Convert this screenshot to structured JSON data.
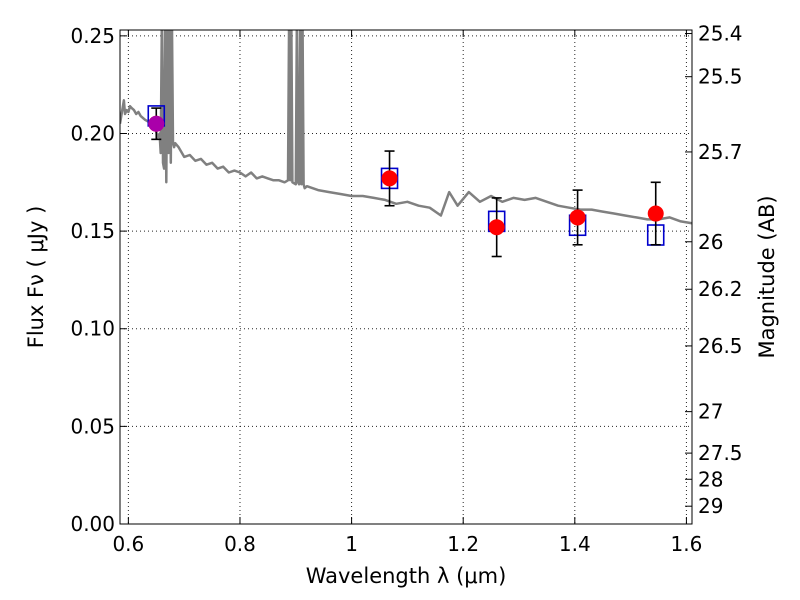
{
  "chart_data": {
    "type": "scatter",
    "title": "",
    "xlabel": "Wavelength  λ (μm)",
    "ylabel": "Flux  Fν ( μJy )",
    "ylabel_right": "Magnitude (AB)",
    "xlim": [
      0.585,
      1.61
    ],
    "ylim": [
      0.0,
      0.253
    ],
    "xticks": [
      {
        "value": 0.6,
        "label": "0.6"
      },
      {
        "value": 0.8,
        "label": "0.8"
      },
      {
        "value": 1.0,
        "label": "1"
      },
      {
        "value": 1.2,
        "label": "1.2"
      },
      {
        "value": 1.4,
        "label": "1.4"
      },
      {
        "value": 1.6,
        "label": "1.6"
      }
    ],
    "yticks": [
      {
        "value": 0.0,
        "label": "0.00"
      },
      {
        "value": 0.05,
        "label": "0.05"
      },
      {
        "value": 0.1,
        "label": "0.10"
      },
      {
        "value": 0.15,
        "label": "0.15"
      },
      {
        "value": 0.2,
        "label": "0.20"
      },
      {
        "value": 0.25,
        "label": "0.25"
      }
    ],
    "mag_ticks": [
      {
        "value": 25.4,
        "label": "25.4"
      },
      {
        "value": 25.5,
        "label": "25.5"
      },
      {
        "value": 25.7,
        "label": "25.7"
      },
      {
        "value": 26.0,
        "label": "26"
      },
      {
        "value": 26.2,
        "label": "26.2"
      },
      {
        "value": 26.5,
        "label": "26.5"
      },
      {
        "value": 27.0,
        "label": "27"
      },
      {
        "value": 27.5,
        "label": "27.5"
      },
      {
        "value": 28.0,
        "label": "28"
      },
      {
        "value": 29.0,
        "label": "29"
      }
    ],
    "grid": true,
    "series": [
      {
        "kind": "line",
        "color": "#808080",
        "x": [
          0.585,
          0.592,
          0.594,
          0.597,
          0.6,
          0.603,
          0.606,
          0.61,
          0.614,
          0.618,
          0.622,
          0.626,
          0.63,
          0.636,
          0.642,
          0.648,
          0.652,
          0.656,
          0.658,
          0.66,
          0.662,
          0.664,
          0.666,
          0.668,
          0.67,
          0.672,
          0.674,
          0.676,
          0.678,
          0.68,
          0.682,
          0.684,
          0.69,
          0.7,
          0.71,
          0.72,
          0.73,
          0.74,
          0.75,
          0.76,
          0.77,
          0.78,
          0.79,
          0.8,
          0.81,
          0.82,
          0.83,
          0.84,
          0.85,
          0.86,
          0.87,
          0.88,
          0.886,
          0.888,
          0.89,
          0.892,
          0.894,
          0.9,
          0.902,
          0.904,
          0.906,
          0.908,
          0.91,
          0.912,
          0.914,
          0.916,
          0.92,
          0.94,
          0.96,
          0.98,
          1.0,
          1.02,
          1.04,
          1.06,
          1.08,
          1.1,
          1.12,
          1.14,
          1.16,
          1.175,
          1.19,
          1.21,
          1.23,
          1.25,
          1.27,
          1.29,
          1.31,
          1.33,
          1.35,
          1.37,
          1.39,
          1.41,
          1.43,
          1.45,
          1.47,
          1.49,
          1.51,
          1.53,
          1.55,
          1.57,
          1.59,
          1.61
        ],
        "values": [
          0.205,
          0.217,
          0.21,
          0.212,
          0.211,
          0.214,
          0.213,
          0.212,
          0.21,
          0.211,
          0.209,
          0.208,
          0.207,
          0.206,
          0.205,
          0.204,
          0.198,
          0.2,
          0.19,
          0.26,
          0.185,
          0.182,
          0.26,
          0.175,
          0.26,
          0.19,
          0.26,
          0.185,
          0.26,
          0.195,
          0.193,
          0.195,
          0.193,
          0.188,
          0.189,
          0.186,
          0.187,
          0.184,
          0.185,
          0.182,
          0.183,
          0.18,
          0.181,
          0.18,
          0.178,
          0.18,
          0.177,
          0.178,
          0.177,
          0.176,
          0.176,
          0.175,
          0.176,
          0.26,
          0.176,
          0.26,
          0.175,
          0.174,
          0.26,
          0.175,
          0.174,
          0.26,
          0.174,
          0.26,
          0.174,
          0.172,
          0.173,
          0.171,
          0.17,
          0.169,
          0.168,
          0.168,
          0.167,
          0.166,
          0.164,
          0.165,
          0.163,
          0.162,
          0.158,
          0.17,
          0.163,
          0.17,
          0.165,
          0.168,
          0.165,
          0.167,
          0.166,
          0.167,
          0.165,
          0.163,
          0.162,
          0.161,
          0.161,
          0.16,
          0.159,
          0.158,
          0.157,
          0.156,
          0.156,
          0.157,
          0.155,
          0.154
        ]
      },
      {
        "kind": "markers",
        "marker": "square-open",
        "color": "#0000cc",
        "x": [
          0.65,
          1.068,
          1.26,
          1.405,
          1.545
        ],
        "values": [
          0.209,
          0.177,
          0.155,
          0.153,
          0.148
        ]
      },
      {
        "kind": "markers",
        "marker": "circle",
        "color": "#ff0000",
        "x": [
          0.65,
          1.068,
          1.26,
          1.405,
          1.545
        ],
        "values": [
          0.205,
          0.177,
          0.152,
          0.157,
          0.159
        ],
        "yerr": [
          0.008,
          0.014,
          0.015,
          0.014,
          0.016
        ]
      },
      {
        "kind": "markers",
        "marker": "circle",
        "color": "#aa00aa",
        "x": [
          0.65
        ],
        "values": [
          0.205
        ]
      }
    ]
  }
}
